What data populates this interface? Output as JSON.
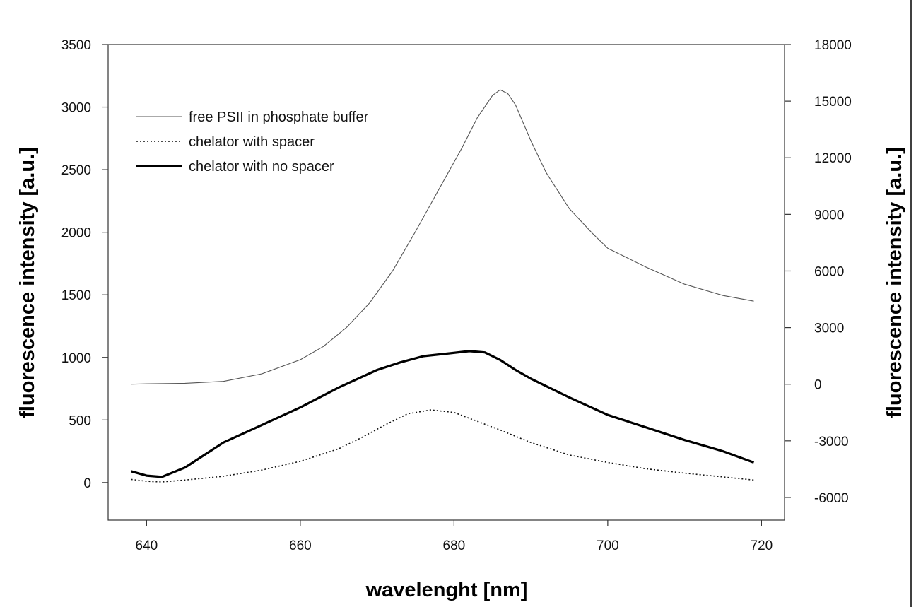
{
  "chart_data": {
    "type": "line",
    "title": "",
    "xlabel": "wavelenght [nm]",
    "ylabel": "fluorescence intensity [a.u.]",
    "y2label": "fluorescence intensity [a.u.]",
    "xlim": [
      635,
      723
    ],
    "ylim": [
      -300,
      3500
    ],
    "y2lim": [
      -7200,
      18000
    ],
    "xticks": [
      640,
      660,
      680,
      700,
      720
    ],
    "yticks": [
      0,
      500,
      1000,
      1500,
      2000,
      2500,
      3000,
      3500
    ],
    "y2ticks": [
      -6000,
      -3000,
      0,
      3000,
      6000,
      9000,
      12000,
      15000,
      18000
    ],
    "grid": false,
    "legend_position": "top-left",
    "series": [
      {
        "name": "free PSII in phosphate buffer",
        "axis": "right",
        "style": "thin",
        "x": [
          638,
          640,
          645,
          650,
          655,
          660,
          663,
          666,
          669,
          672,
          675,
          678,
          681,
          683,
          685,
          686,
          687,
          688,
          690,
          692,
          695,
          698,
          700,
          705,
          710,
          715,
          719
        ],
        "y": [
          0,
          20,
          50,
          150,
          550,
          1300,
          2000,
          3000,
          4300,
          6000,
          8100,
          10300,
          12500,
          14100,
          15300,
          15600,
          15400,
          14800,
          12900,
          11200,
          9300,
          8000,
          7200,
          6200,
          5300,
          4700,
          4400
        ]
      },
      {
        "name": "chelator with spacer",
        "axis": "left",
        "style": "dotted",
        "x": [
          638,
          640,
          642,
          645,
          650,
          655,
          660,
          665,
          668,
          671,
          674,
          677,
          680,
          683,
          686,
          690,
          695,
          700,
          705,
          710,
          715,
          719
        ],
        "y": [
          25,
          10,
          5,
          20,
          50,
          100,
          170,
          270,
          360,
          460,
          550,
          580,
          560,
          490,
          420,
          320,
          220,
          160,
          110,
          75,
          45,
          20
        ]
      },
      {
        "name": "chelator with no spacer",
        "axis": "left",
        "style": "thick",
        "x": [
          638,
          640,
          642,
          645,
          648,
          650,
          655,
          660,
          665,
          670,
          673,
          676,
          679,
          682,
          684,
          686,
          688,
          690,
          695,
          700,
          705,
          710,
          715,
          719
        ],
        "y": [
          90,
          55,
          45,
          120,
          240,
          320,
          460,
          600,
          760,
          900,
          960,
          1010,
          1030,
          1050,
          1040,
          980,
          900,
          830,
          680,
          540,
          440,
          340,
          250,
          160
        ]
      }
    ]
  }
}
